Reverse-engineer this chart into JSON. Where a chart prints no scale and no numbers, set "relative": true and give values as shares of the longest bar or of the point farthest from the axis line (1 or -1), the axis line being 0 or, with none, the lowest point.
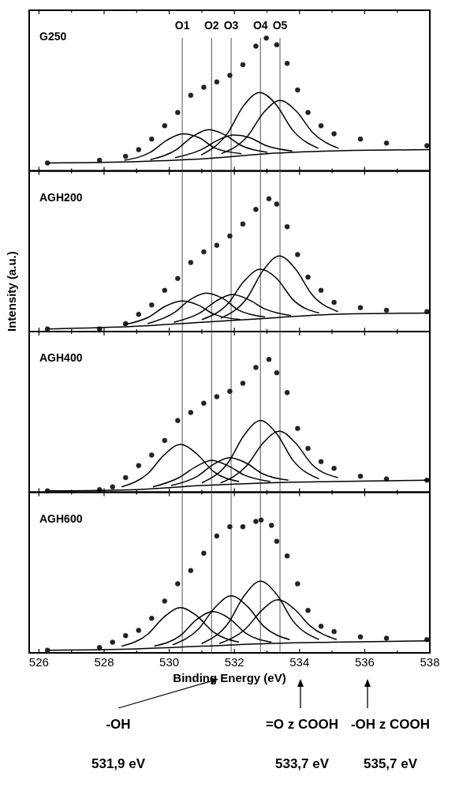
{
  "chart_data": [
    {
      "type": "line",
      "title": "G250",
      "relative": true,
      "tick_labels": false,
      "xlim": [
        525.7,
        538
      ],
      "xticks": [
        526,
        {
          "value": 527,
          "label": null
        },
        528,
        {
          "value": 529,
          "label": null
        },
        530,
        {
          "value": 531,
          "label": null
        },
        532,
        {
          "value": 533,
          "label": null
        },
        534,
        {
          "value": 535,
          "label": null
        },
        536,
        {
          "value": 537,
          "label": null
        },
        538
      ],
      "ref_lines": [
        {
          "axis": "x",
          "value": 530.4,
          "label": "O1",
          "color": "#555555"
        },
        {
          "axis": "x",
          "value": 531.3,
          "label": "O2",
          "color": "#555555"
        },
        {
          "axis": "x",
          "value": 531.9,
          "label": "O3",
          "color": "#555555"
        },
        {
          "axis": "x",
          "value": 532.8,
          "label": "O4",
          "color": "#555555"
        },
        {
          "axis": "x",
          "value": 533.4,
          "label": "O5",
          "color": "#555555"
        }
      ],
      "series": [
        {
          "type": "scatter",
          "color": "#222222",
          "marker": "circle",
          "x": [
            526.26,
            527.86,
            528.66,
            529.06,
            529.46,
            529.86,
            530.26,
            530.66,
            531.06,
            531.46,
            531.86,
            532.26,
            532.66,
            532.98,
            533.3,
            533.62,
            533.94,
            534.26,
            534.66,
            535.06,
            535.87,
            536.67,
            537.91
          ],
          "values": [
            0.06,
            0.08,
            0.11,
            0.16,
            0.24,
            0.34,
            0.44,
            0.57,
            0.63,
            0.67,
            0.72,
            0.8,
            0.94,
            1,
            0.95,
            0.81,
            0.61,
            0.44,
            0.34,
            0.28,
            0.24,
            0.21,
            0.19
          ]
        },
        {
          "color": "#000000",
          "x": [
            528.62,
            529.42,
            529.92,
            530.42,
            530.92,
            531.42,
            532.22
          ],
          "values": [
            0.08,
            0.14,
            0.23,
            0.28,
            0.25,
            0.17,
            0.13
          ]
        },
        {
          "color": "#000000",
          "x": [
            529.42,
            530.22,
            530.72,
            531.22,
            531.72,
            532.22,
            533.02
          ],
          "values": [
            0.085,
            0.16,
            0.26,
            0.31,
            0.27,
            0.19,
            0.14
          ]
        },
        {
          "color": "#000000",
          "x": [
            530.18,
            530.98,
            531.48,
            531.98,
            532.48,
            532.98,
            533.78
          ],
          "values": [
            0.1,
            0.16,
            0.23,
            0.27,
            0.25,
            0.19,
            0.15
          ]
        },
        {
          "color": "#000000",
          "x": [
            530.98,
            531.78,
            532.28,
            532.78,
            533.28,
            533.78,
            534.58
          ],
          "values": [
            0.12,
            0.28,
            0.49,
            0.59,
            0.5,
            0.31,
            0.17
          ]
        },
        {
          "color": "#000000",
          "x": [
            531.6,
            532.4,
            532.9,
            533.4,
            533.9,
            534.4,
            535.2
          ],
          "values": [
            0.13,
            0.26,
            0.44,
            0.53,
            0.45,
            0.29,
            0.17
          ]
        },
        {
          "color": "#000000",
          "x": [
            526.3,
            529,
            531,
            533,
            535,
            538
          ],
          "values": [
            0.06,
            0.07,
            0.09,
            0.13,
            0.15,
            0.16
          ]
        }
      ]
    },
    {
      "type": "line",
      "title": "AGH200",
      "ylabel": "Intensity (a.u.)",
      "relative": true,
      "tick_labels": false,
      "xlim": [
        525.7,
        538
      ],
      "xticks": [
        526,
        {
          "value": 527,
          "label": null
        },
        528,
        {
          "value": 529,
          "label": null
        },
        530,
        {
          "value": 531,
          "label": null
        },
        532,
        {
          "value": 533,
          "label": null
        },
        534,
        {
          "value": 535,
          "label": null
        },
        536,
        {
          "value": 537,
          "label": null
        },
        538
      ],
      "ref_lines": [
        {
          "axis": "x",
          "value": 530.4,
          "color": "#555555"
        },
        {
          "axis": "x",
          "value": 531.3,
          "color": "#555555"
        },
        {
          "axis": "x",
          "value": 531.9,
          "color": "#555555"
        },
        {
          "axis": "x",
          "value": 532.8,
          "color": "#555555"
        },
        {
          "axis": "x",
          "value": 533.4,
          "color": "#555555"
        }
      ],
      "series": [
        {
          "type": "scatter",
          "color": "#222222",
          "marker": "circle",
          "x": [
            526.26,
            527.86,
            528.66,
            529.06,
            529.46,
            529.86,
            530.26,
            530.66,
            531.06,
            531.46,
            531.86,
            532.26,
            532.66,
            533.06,
            533.3,
            533.62,
            533.94,
            534.26,
            534.66,
            535.06,
            535.87,
            536.67,
            537.91
          ],
          "values": [
            0.02,
            0.02,
            0.06,
            0.13,
            0.2,
            0.31,
            0.4,
            0.52,
            0.6,
            0.65,
            0.72,
            0.81,
            0.92,
            1,
            0.96,
            0.79,
            0.58,
            0.41,
            0.31,
            0.22,
            0.18,
            0.16,
            0.15
          ]
        },
        {
          "color": "#000000",
          "x": [
            528.58,
            529.38,
            529.88,
            530.38,
            530.88,
            531.38,
            532.18
          ],
          "values": [
            0.05,
            0.11,
            0.19,
            0.23,
            0.2,
            0.13,
            0.09
          ]
        },
        {
          "color": "#000000",
          "x": [
            529.34,
            530.14,
            530.64,
            531.14,
            531.64,
            532.14,
            532.94
          ],
          "values": [
            0.06,
            0.14,
            0.24,
            0.29,
            0.25,
            0.16,
            0.11
          ]
        },
        {
          "color": "#000000",
          "x": [
            530.14,
            530.94,
            531.44,
            531.94,
            532.44,
            532.94,
            533.74
          ],
          "values": [
            0.07,
            0.14,
            0.23,
            0.28,
            0.24,
            0.17,
            0.12
          ]
        },
        {
          "color": "#000000",
          "x": [
            531,
            531.8,
            532.3,
            532.8,
            533.3,
            533.8,
            534.6
          ],
          "values": [
            0.09,
            0.21,
            0.38,
            0.47,
            0.4,
            0.24,
            0.14
          ]
        },
        {
          "color": "#000000",
          "x": [
            531.58,
            532.38,
            532.88,
            533.38,
            533.88,
            534.38,
            535.18
          ],
          "values": [
            0.1,
            0.25,
            0.46,
            0.57,
            0.47,
            0.28,
            0.15
          ]
        },
        {
          "color": "#000000",
          "x": [
            526.3,
            529,
            531,
            533,
            535,
            538
          ],
          "values": [
            0.02,
            0.04,
            0.07,
            0.1,
            0.13,
            0.14
          ]
        }
      ]
    },
    {
      "type": "line",
      "title": "AGH400",
      "relative": true,
      "tick_labels": false,
      "xlim": [
        525.7,
        538
      ],
      "xticks": [
        526,
        {
          "value": 527,
          "label": null
        },
        528,
        {
          "value": 529,
          "label": null
        },
        530,
        {
          "value": 531,
          "label": null
        },
        532,
        {
          "value": 533,
          "label": null
        },
        534,
        {
          "value": 535,
          "label": null
        },
        536,
        {
          "value": 537,
          "label": null
        },
        538
      ],
      "ref_lines": [
        {
          "axis": "x",
          "value": 530.4,
          "color": "#555555"
        },
        {
          "axis": "x",
          "value": 531.3,
          "color": "#555555"
        },
        {
          "axis": "x",
          "value": 531.9,
          "color": "#555555"
        },
        {
          "axis": "x",
          "value": 532.8,
          "color": "#555555"
        },
        {
          "axis": "x",
          "value": 533.4,
          "color": "#555555"
        }
      ],
      "series": [
        {
          "type": "scatter",
          "color": "#222222",
          "marker": "circle",
          "x": [
            526.26,
            527.86,
            528.26,
            528.66,
            529.06,
            529.46,
            529.86,
            530.26,
            530.66,
            531.06,
            531.46,
            531.86,
            532.26,
            532.66,
            533.06,
            533.3,
            533.62,
            533.94,
            534.26,
            534.66,
            535.06,
            535.87,
            536.67,
            537.91
          ],
          "values": [
            0.01,
            0.02,
            0.04,
            0.11,
            0.2,
            0.28,
            0.39,
            0.54,
            0.6,
            0.67,
            0.72,
            0.76,
            0.82,
            0.94,
            1,
            0.9,
            0.75,
            0.48,
            0.33,
            0.23,
            0.18,
            0.12,
            0.1,
            0.09
          ]
        },
        {
          "color": "#000000",
          "x": [
            528.54,
            529.34,
            529.84,
            530.34,
            530.84,
            531.34,
            532.14
          ],
          "values": [
            0.04,
            0.14,
            0.28,
            0.36,
            0.29,
            0.16,
            0.08
          ]
        },
        {
          "color": "#000000",
          "x": [
            529.5,
            530.3,
            530.8,
            531.3,
            531.8,
            532.3,
            533.1
          ],
          "values": [
            0.04,
            0.11,
            0.19,
            0.24,
            0.2,
            0.13,
            0.08
          ]
        },
        {
          "color": "#000000",
          "x": [
            530.06,
            530.86,
            531.36,
            531.86,
            532.36,
            532.86,
            533.66
          ],
          "values": [
            0.05,
            0.12,
            0.21,
            0.26,
            0.22,
            0.14,
            0.09
          ]
        },
        {
          "color": "#000000",
          "x": [
            531,
            531.8,
            532.3,
            532.8,
            533.3,
            533.8,
            534.6
          ],
          "values": [
            0.07,
            0.22,
            0.43,
            0.54,
            0.44,
            0.24,
            0.1
          ]
        },
        {
          "color": "#000000",
          "x": [
            531.58,
            532.38,
            532.88,
            533.38,
            533.88,
            534.38,
            535.18
          ],
          "values": [
            0.07,
            0.2,
            0.37,
            0.46,
            0.37,
            0.21,
            0.11
          ]
        },
        {
          "color": "#000000",
          "x": [
            526.3,
            529,
            531,
            533,
            535,
            538
          ],
          "values": [
            0.01,
            0.02,
            0.05,
            0.07,
            0.08,
            0.09
          ]
        }
      ]
    },
    {
      "type": "line",
      "title": "AGH600",
      "xlabel": "Binding Energy (eV)",
      "relative": true,
      "xlim": [
        525.7,
        538
      ],
      "xticks": [
        526,
        {
          "value": 527,
          "label": null
        },
        528,
        {
          "value": 529,
          "label": null
        },
        530,
        {
          "value": 531,
          "label": null
        },
        532,
        {
          "value": 533,
          "label": null
        },
        534,
        {
          "value": 535,
          "label": null
        },
        536,
        {
          "value": 537,
          "label": null
        },
        538
      ],
      "ref_lines": [
        {
          "axis": "x",
          "value": 530.4,
          "color": "#555555"
        },
        {
          "axis": "x",
          "value": 531.3,
          "color": "#555555"
        },
        {
          "axis": "x",
          "value": 531.9,
          "color": "#555555"
        },
        {
          "axis": "x",
          "value": 532.8,
          "color": "#555555"
        },
        {
          "axis": "x",
          "value": 533.4,
          "color": "#555555"
        }
      ],
      "annotations": [
        "-OH",
        "531,9 eV",
        "=O z COOH",
        "533,7 eV",
        "-OH z COOH",
        "535,7 eV"
      ],
      "series": [
        {
          "type": "scatter",
          "color": "#222222",
          "marker": "circle",
          "x": [
            526.26,
            527.86,
            528.26,
            528.66,
            529.06,
            529.46,
            529.86,
            530.26,
            530.66,
            531.06,
            531.46,
            531.86,
            532.26,
            532.66,
            532.82,
            533.14,
            533.3,
            533.62,
            533.94,
            534.26,
            534.66,
            535.06,
            535.87,
            536.67,
            537.91
          ],
          "values": [
            0.02,
            0.04,
            0.08,
            0.13,
            0.17,
            0.26,
            0.39,
            0.52,
            0.62,
            0.75,
            0.88,
            0.95,
            0.95,
            0.99,
            1,
            0.96,
            0.84,
            0.73,
            0.52,
            0.32,
            0.2,
            0.16,
            0.12,
            0.11,
            0.1
          ]
        },
        {
          "color": "#000000",
          "x": [
            528.54,
            529.34,
            529.84,
            530.34,
            530.84,
            531.34,
            532.14
          ],
          "values": [
            0.05,
            0.14,
            0.27,
            0.34,
            0.28,
            0.16,
            0.08
          ]
        },
        {
          "color": "#000000",
          "x": [
            529.54,
            530.34,
            530.84,
            531.34,
            531.84,
            532.34,
            533.14
          ],
          "values": [
            0.05,
            0.13,
            0.25,
            0.31,
            0.26,
            0.15,
            0.08
          ]
        },
        {
          "color": "#000000",
          "x": [
            530.1,
            530.9,
            531.4,
            531.9,
            532.4,
            532.9,
            533.7
          ],
          "values": [
            0.06,
            0.18,
            0.34,
            0.43,
            0.35,
            0.2,
            0.1
          ]
        },
        {
          "color": "#000000",
          "x": [
            531,
            531.8,
            532.3,
            532.8,
            533.3,
            533.8,
            534.6
          ],
          "values": [
            0.07,
            0.22,
            0.43,
            0.54,
            0.44,
            0.24,
            0.1
          ]
        },
        {
          "color": "#000000",
          "x": [
            531.54,
            532.34,
            532.84,
            533.34,
            533.84,
            534.34,
            535.14
          ],
          "values": [
            0.07,
            0.18,
            0.32,
            0.4,
            0.33,
            0.2,
            0.1
          ]
        },
        {
          "color": "#000000",
          "x": [
            526.3,
            529,
            531,
            533,
            535,
            538
          ],
          "values": [
            0.02,
            0.03,
            0.05,
            0.07,
            0.08,
            0.09
          ]
        }
      ]
    }
  ]
}
